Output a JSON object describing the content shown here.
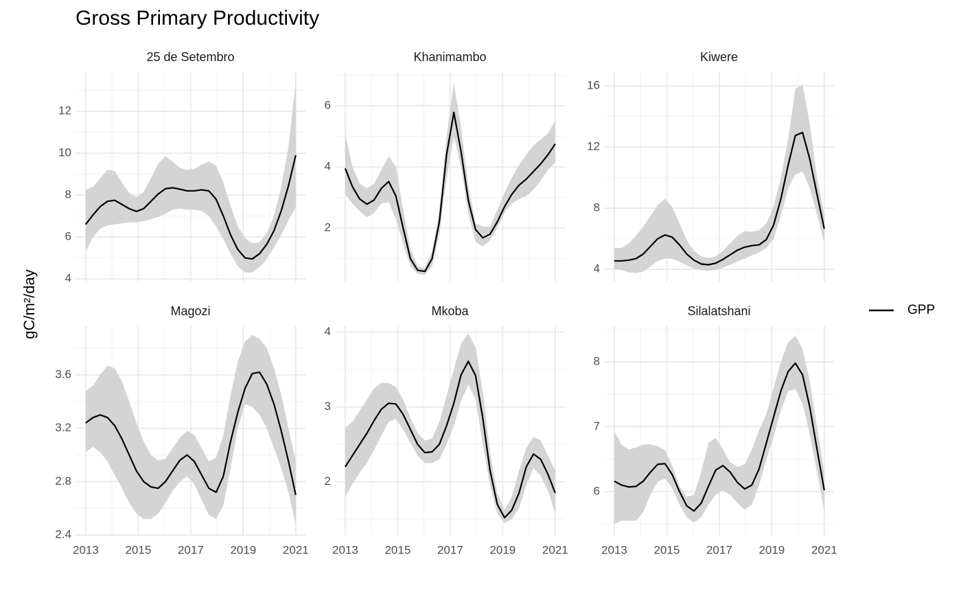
{
  "title": "Gross Primary Productivity",
  "ylabel": "gC/m²/day",
  "chart_data": [
    {
      "type": "line",
      "title": "25 de Setembro",
      "x": [
        2013,
        2013.276,
        2013.552,
        2013.828,
        2014.103,
        2014.379,
        2014.655,
        2014.931,
        2015.207,
        2015.483,
        2015.759,
        2016.034,
        2016.31,
        2016.586,
        2016.862,
        2017.138,
        2017.414,
        2017.69,
        2017.966,
        2018.241,
        2018.517,
        2018.793,
        2019.069,
        2019.345,
        2019.621,
        2019.897,
        2020.172,
        2020.448,
        2020.724,
        2021
      ],
      "xlim": [
        2012.61,
        2021.37
      ],
      "xticks": [
        2013,
        2015,
        2017,
        2019,
        2021
      ],
      "xminor": [
        2014,
        2016,
        2018,
        2020
      ],
      "ylim": [
        3.87,
        13.87
      ],
      "yticks": [
        4,
        6,
        8,
        10,
        12
      ],
      "yminor": [
        5,
        7,
        9,
        11,
        13
      ],
      "grid": true,
      "series": [
        {
          "name": "GPP",
          "color": "#000000",
          "ribbon_color": "#d4d4d4",
          "values": [
            6.6,
            7.05,
            7.45,
            7.7,
            7.75,
            7.55,
            7.35,
            7.22,
            7.35,
            7.7,
            8.05,
            8.3,
            8.35,
            8.28,
            8.2,
            8.2,
            8.25,
            8.2,
            7.8,
            7.0,
            6.1,
            5.4,
            5.0,
            4.95,
            5.2,
            5.65,
            6.3,
            7.25,
            8.45,
            9.9
          ],
          "upper": [
            8.25,
            8.4,
            8.8,
            9.2,
            9.15,
            8.6,
            8.1,
            7.9,
            8.15,
            8.8,
            9.5,
            9.85,
            9.6,
            9.3,
            9.2,
            9.25,
            9.45,
            9.6,
            9.4,
            8.6,
            7.5,
            6.5,
            5.95,
            5.7,
            5.75,
            6.2,
            7.0,
            8.4,
            10.3,
            13.4
          ],
          "lower": [
            5.3,
            6.0,
            6.4,
            6.55,
            6.6,
            6.65,
            6.7,
            6.7,
            6.75,
            6.85,
            6.95,
            7.1,
            7.3,
            7.35,
            7.3,
            7.3,
            7.25,
            7.0,
            6.5,
            5.9,
            5.2,
            4.6,
            4.3,
            4.3,
            4.55,
            4.95,
            5.5,
            6.1,
            6.8,
            7.4
          ]
        }
      ]
    },
    {
      "type": "line",
      "title": "Khanimambo",
      "x": [
        2013,
        2013.276,
        2013.552,
        2013.828,
        2014.103,
        2014.379,
        2014.655,
        2014.931,
        2015.207,
        2015.483,
        2015.759,
        2016.034,
        2016.31,
        2016.586,
        2016.862,
        2017.138,
        2017.414,
        2017.69,
        2017.966,
        2018.241,
        2018.517,
        2018.793,
        2019.069,
        2019.345,
        2019.621,
        2019.897,
        2020.172,
        2020.448,
        2020.724,
        2021
      ],
      "xlim": [
        2012.61,
        2021.37
      ],
      "xticks": [
        2013,
        2015,
        2017,
        2019,
        2021
      ],
      "xminor": [
        2014,
        2016,
        2018,
        2020
      ],
      "ylim": [
        0.25,
        7.1
      ],
      "yticks": [
        2,
        4,
        6
      ],
      "yminor": [
        1,
        3,
        5,
        7
      ],
      "grid": true,
      "series": [
        {
          "name": "GPP",
          "color": "#000000",
          "ribbon_color": "#d4d4d4",
          "values": [
            3.95,
            3.35,
            2.95,
            2.78,
            2.92,
            3.3,
            3.52,
            3.05,
            2.0,
            1.0,
            0.62,
            0.58,
            1.0,
            2.2,
            4.4,
            5.78,
            4.5,
            2.9,
            1.95,
            1.68,
            1.8,
            2.2,
            2.7,
            3.1,
            3.4,
            3.6,
            3.85,
            4.1,
            4.4,
            4.75
          ],
          "upper": [
            5.1,
            4.0,
            3.45,
            3.3,
            3.45,
            3.9,
            4.35,
            4.0,
            2.6,
            1.35,
            0.75,
            0.7,
            1.25,
            2.6,
            5.0,
            6.75,
            5.3,
            3.4,
            2.15,
            2.05,
            2.05,
            2.6,
            3.15,
            3.65,
            4.05,
            4.4,
            4.7,
            4.9,
            5.1,
            5.5
          ],
          "lower": [
            3.1,
            2.8,
            2.55,
            2.35,
            2.5,
            2.8,
            2.85,
            2.3,
            1.5,
            0.75,
            0.5,
            0.47,
            0.75,
            1.8,
            3.6,
            5.0,
            4.0,
            2.45,
            1.55,
            1.4,
            1.6,
            2.0,
            2.5,
            2.8,
            2.95,
            3.05,
            3.25,
            3.55,
            3.9,
            4.15
          ]
        }
      ]
    },
    {
      "type": "line",
      "title": "Kiwere",
      "x": [
        2013,
        2013.276,
        2013.552,
        2013.828,
        2014.103,
        2014.379,
        2014.655,
        2014.931,
        2015.207,
        2015.483,
        2015.759,
        2016.034,
        2016.31,
        2016.586,
        2016.862,
        2017.138,
        2017.414,
        2017.69,
        2017.966,
        2018.241,
        2018.517,
        2018.793,
        2019.069,
        2019.345,
        2019.621,
        2019.897,
        2020.172,
        2020.448,
        2020.724,
        2021
      ],
      "xlim": [
        2012.61,
        2021.37
      ],
      "xticks": [
        2013,
        2015,
        2017,
        2019,
        2021
      ],
      "xminor": [
        2014,
        2016,
        2018,
        2020
      ],
      "ylim": [
        3.2,
        16.9
      ],
      "yticks": [
        4,
        8,
        12,
        16
      ],
      "yminor": [
        6,
        10,
        14
      ],
      "grid": true,
      "series": [
        {
          "name": "GPP",
          "color": "#000000",
          "ribbon_color": "#d4d4d4",
          "values": [
            4.55,
            4.55,
            4.6,
            4.7,
            5.0,
            5.5,
            6.0,
            6.25,
            6.1,
            5.6,
            5.0,
            4.6,
            4.35,
            4.3,
            4.4,
            4.65,
            4.95,
            5.25,
            5.45,
            5.55,
            5.6,
            5.95,
            6.9,
            8.6,
            10.8,
            12.75,
            12.95,
            11.2,
            8.9,
            6.65
          ],
          "upper": [
            5.4,
            5.4,
            5.7,
            6.2,
            6.8,
            7.5,
            8.2,
            8.6,
            8.1,
            7.0,
            5.9,
            5.2,
            4.85,
            4.75,
            4.85,
            5.2,
            5.7,
            6.2,
            6.5,
            6.45,
            6.55,
            7.0,
            8.1,
            10.0,
            12.5,
            15.8,
            16.1,
            13.5,
            10.0,
            7.6
          ],
          "lower": [
            4.0,
            3.95,
            3.8,
            3.75,
            3.85,
            4.2,
            4.55,
            4.7,
            4.7,
            4.5,
            4.25,
            4.05,
            3.95,
            3.9,
            3.95,
            4.1,
            4.3,
            4.5,
            4.7,
            4.9,
            5.1,
            5.4,
            6.0,
            7.5,
            9.3,
            10.2,
            10.4,
            9.3,
            7.6,
            5.7
          ]
        }
      ]
    },
    {
      "type": "line",
      "title": "Magozi",
      "x": [
        2013,
        2013.276,
        2013.552,
        2013.828,
        2014.103,
        2014.379,
        2014.655,
        2014.931,
        2015.207,
        2015.483,
        2015.759,
        2016.034,
        2016.31,
        2016.586,
        2016.862,
        2017.138,
        2017.414,
        2017.69,
        2017.966,
        2018.241,
        2018.517,
        2018.793,
        2019.069,
        2019.345,
        2019.621,
        2019.897,
        2020.172,
        2020.448,
        2020.724,
        2021
      ],
      "xlim": [
        2012.61,
        2021.37
      ],
      "xticks": [
        2013,
        2015,
        2017,
        2019,
        2021
      ],
      "xminor": [
        2014,
        2016,
        2018,
        2020
      ],
      "ylim": [
        2.395,
        3.965
      ],
      "yticks": [
        2.4,
        2.8,
        3.2,
        3.6
      ],
      "yminor": [
        2.6,
        3.0,
        3.4,
        3.8
      ],
      "grid": true,
      "series": [
        {
          "name": "GPP",
          "color": "#000000",
          "ribbon_color": "#d4d4d4",
          "values": [
            3.24,
            3.28,
            3.3,
            3.28,
            3.22,
            3.12,
            3.0,
            2.88,
            2.8,
            2.76,
            2.75,
            2.8,
            2.88,
            2.96,
            3.0,
            2.95,
            2.85,
            2.75,
            2.72,
            2.84,
            3.1,
            3.32,
            3.5,
            3.61,
            3.62,
            3.53,
            3.38,
            3.18,
            2.95,
            2.7
          ],
          "upper": [
            3.48,
            3.52,
            3.6,
            3.67,
            3.65,
            3.55,
            3.4,
            3.24,
            3.1,
            3.0,
            2.96,
            2.97,
            3.05,
            3.13,
            3.18,
            3.15,
            3.05,
            2.95,
            2.98,
            3.15,
            3.45,
            3.7,
            3.85,
            3.9,
            3.87,
            3.8,
            3.65,
            3.45,
            3.2,
            2.95
          ],
          "lower": [
            3.02,
            3.06,
            3.02,
            2.95,
            2.85,
            2.75,
            2.64,
            2.56,
            2.52,
            2.52,
            2.56,
            2.64,
            2.73,
            2.8,
            2.84,
            2.78,
            2.66,
            2.55,
            2.52,
            2.62,
            2.9,
            3.2,
            3.38,
            3.36,
            3.3,
            3.2,
            3.05,
            2.9,
            2.72,
            2.48
          ]
        }
      ]
    },
    {
      "type": "line",
      "title": "Mkoba",
      "x": [
        2013,
        2013.276,
        2013.552,
        2013.828,
        2014.103,
        2014.379,
        2014.655,
        2014.931,
        2015.207,
        2015.483,
        2015.759,
        2016.034,
        2016.31,
        2016.586,
        2016.862,
        2017.138,
        2017.414,
        2017.69,
        2017.966,
        2018.241,
        2018.517,
        2018.793,
        2019.069,
        2019.345,
        2019.621,
        2019.897,
        2020.172,
        2020.448,
        2020.724,
        2021
      ],
      "xlim": [
        2012.61,
        2021.37
      ],
      "xticks": [
        2013,
        2015,
        2017,
        2019,
        2021
      ],
      "xminor": [
        2014,
        2016,
        2018,
        2020
      ],
      "ylim": [
        1.28,
        4.08
      ],
      "yticks": [
        2,
        3,
        4
      ],
      "yminor": [
        1.5,
        2.5,
        3.5
      ],
      "grid": true,
      "series": [
        {
          "name": "GPP",
          "color": "#000000",
          "ribbon_color": "#d4d4d4",
          "values": [
            2.2,
            2.35,
            2.5,
            2.65,
            2.82,
            2.97,
            3.05,
            3.04,
            2.9,
            2.7,
            2.5,
            2.39,
            2.4,
            2.5,
            2.75,
            3.05,
            3.43,
            3.61,
            3.42,
            2.85,
            2.15,
            1.7,
            1.52,
            1.62,
            1.85,
            2.2,
            2.37,
            2.3,
            2.1,
            1.85
          ],
          "upper": [
            2.72,
            2.8,
            2.95,
            3.1,
            3.25,
            3.32,
            3.32,
            3.27,
            3.1,
            2.85,
            2.65,
            2.55,
            2.58,
            2.8,
            3.15,
            3.5,
            3.85,
            3.98,
            3.8,
            3.2,
            2.4,
            1.85,
            1.62,
            1.8,
            2.15,
            2.45,
            2.6,
            2.55,
            2.35,
            2.15
          ],
          "lower": [
            1.8,
            1.97,
            2.12,
            2.25,
            2.43,
            2.62,
            2.8,
            2.84,
            2.7,
            2.52,
            2.35,
            2.25,
            2.25,
            2.3,
            2.5,
            2.75,
            3.08,
            3.3,
            3.1,
            2.5,
            1.95,
            1.58,
            1.45,
            1.5,
            1.65,
            1.95,
            2.18,
            2.08,
            1.88,
            1.58
          ]
        }
      ]
    },
    {
      "type": "line",
      "title": "Silalatshani",
      "x": [
        2013,
        2013.276,
        2013.552,
        2013.828,
        2014.103,
        2014.379,
        2014.655,
        2014.931,
        2015.207,
        2015.483,
        2015.759,
        2016.034,
        2016.31,
        2016.586,
        2016.862,
        2017.138,
        2017.414,
        2017.69,
        2017.966,
        2018.241,
        2018.517,
        2018.793,
        2019.069,
        2019.345,
        2019.621,
        2019.897,
        2020.172,
        2020.448,
        2020.724,
        2021
      ],
      "xlim": [
        2012.61,
        2021.37
      ],
      "xticks": [
        2013,
        2015,
        2017,
        2019,
        2021
      ],
      "xminor": [
        2014,
        2016,
        2018,
        2020
      ],
      "ylim": [
        5.32,
        8.55
      ],
      "yticks": [
        6,
        7,
        8
      ],
      "yminor": [
        5.5,
        6.5,
        7.5,
        8.5
      ],
      "grid": true,
      "series": [
        {
          "name": "GPP",
          "color": "#000000",
          "ribbon_color": "#d4d4d4",
          "values": [
            6.16,
            6.1,
            6.07,
            6.08,
            6.16,
            6.3,
            6.42,
            6.43,
            6.26,
            6.0,
            5.78,
            5.7,
            5.82,
            6.08,
            6.33,
            6.4,
            6.3,
            6.14,
            6.04,
            6.1,
            6.35,
            6.75,
            7.15,
            7.55,
            7.85,
            7.98,
            7.8,
            7.3,
            6.65,
            6.02
          ],
          "upper": [
            6.93,
            6.72,
            6.65,
            6.68,
            6.72,
            6.73,
            6.7,
            6.64,
            6.4,
            6.08,
            5.92,
            5.95,
            6.3,
            6.75,
            6.83,
            6.65,
            6.45,
            6.38,
            6.42,
            6.65,
            6.95,
            7.2,
            7.6,
            8.0,
            8.3,
            8.4,
            8.2,
            7.7,
            7.0,
            6.3
          ],
          "lower": [
            5.5,
            5.55,
            5.55,
            5.55,
            5.68,
            5.95,
            6.15,
            6.2,
            6.05,
            5.8,
            5.6,
            5.52,
            5.6,
            5.8,
            5.95,
            6.02,
            5.95,
            5.82,
            5.72,
            5.8,
            6.1,
            6.5,
            6.85,
            7.25,
            7.55,
            7.58,
            7.35,
            6.88,
            6.3,
            5.7
          ]
        }
      ]
    }
  ]
}
